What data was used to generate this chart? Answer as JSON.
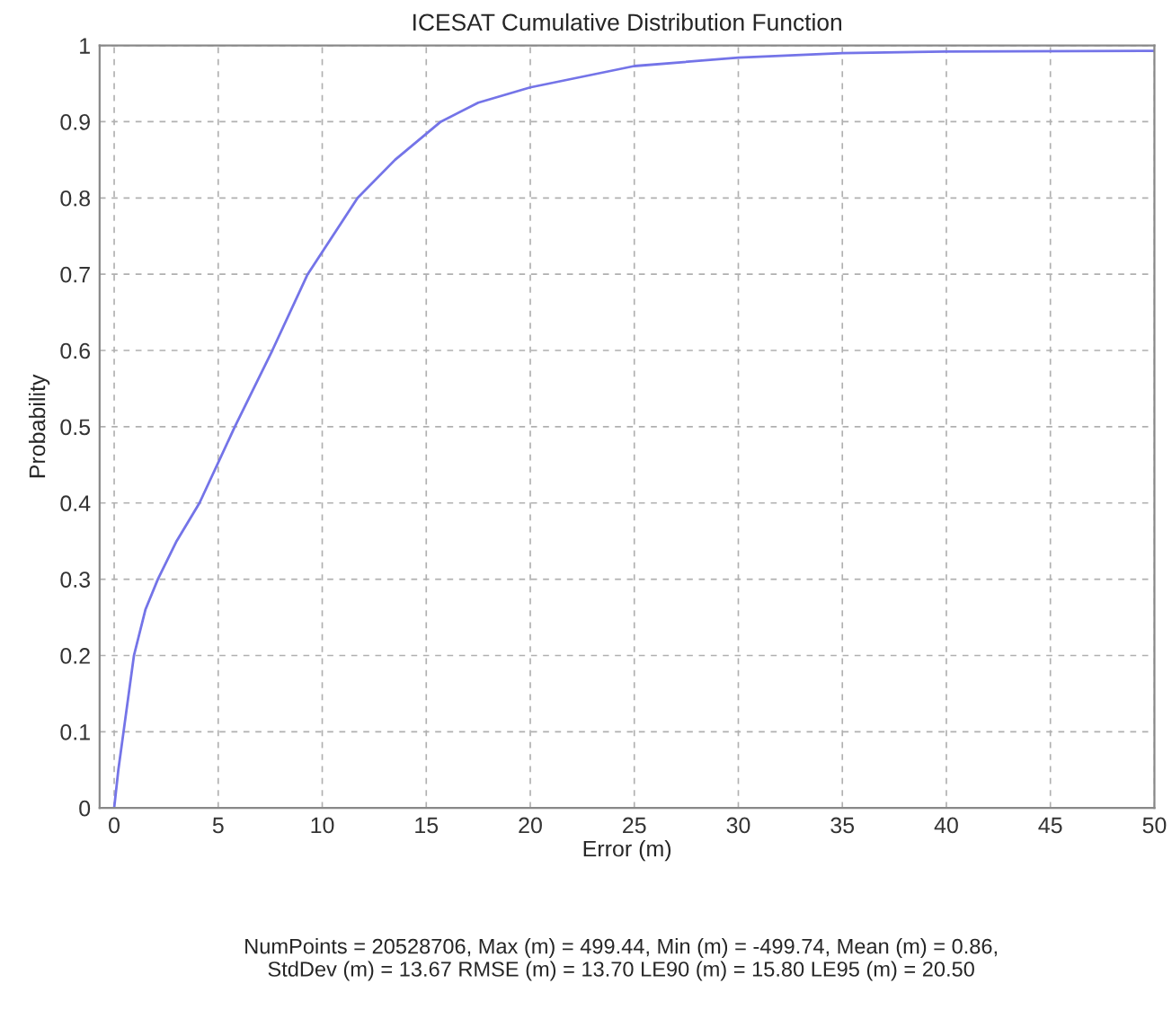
{
  "chart_data": {
    "type": "line",
    "title": "ICESAT Cumulative Distribution Function",
    "xlabel": "Error (m)",
    "ylabel": "Probability",
    "x": [
      0,
      0.2,
      0.45,
      0.95,
      1.5,
      2.1,
      3,
      4.1,
      5.8,
      7.6,
      9.3,
      11.7,
      13.5,
      15.7,
      17.5,
      20,
      25,
      30,
      35,
      40,
      50
    ],
    "series": [
      {
        "color": "#7474e8",
        "values": [
          0,
          0.05,
          0.1,
          0.2,
          0.26,
          0.3,
          0.35,
          0.4,
          0.5,
          0.6,
          0.7,
          0.8,
          0.85,
          0.9,
          0.925,
          0.945,
          0.973,
          0.984,
          0.99,
          0.992,
          0.993
        ]
      }
    ],
    "xlim": [
      -0.7,
      50
    ],
    "ylim": [
      0,
      1
    ],
    "xticks": [
      0,
      5,
      10,
      15,
      20,
      25,
      30,
      35,
      40,
      45,
      50
    ],
    "yticks": [
      0,
      0.1,
      0.2,
      0.3,
      0.4,
      0.5,
      0.6,
      0.7,
      0.8,
      0.9,
      1
    ],
    "grid": true,
    "marker": "none",
    "line_style": "solid",
    "annotations": [
      "NumPoints = 20528706, Max (m) = 499.44, Min (m) = -499.74, Mean (m) = 0.86,\nStdDev (m) = 13.67 RMSE (m) = 13.70 LE90 (m) = 15.80 LE95 (m) = 20.50"
    ]
  }
}
